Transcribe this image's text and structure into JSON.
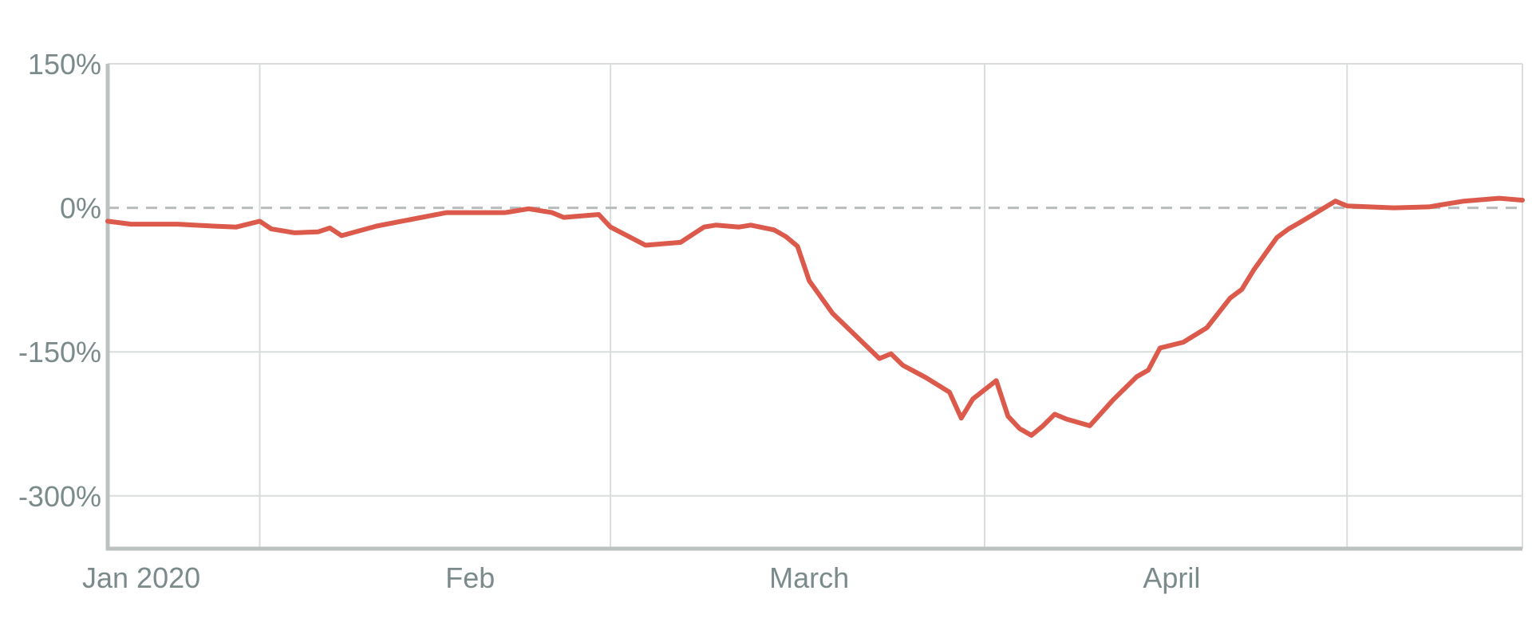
{
  "chart_data": {
    "type": "line",
    "title": "",
    "xlabel": "",
    "ylabel": "",
    "x_tick_labels": [
      "Jan 2020",
      "Feb",
      "March",
      "April"
    ],
    "y_tick_labels": [
      "150%",
      "0%",
      "-150%",
      "-300%"
    ],
    "y_ticks": [
      150,
      0,
      -150,
      -300
    ],
    "ylim": [
      -355,
      150
    ],
    "x_unit": "day",
    "x_range": [
      0,
      121
    ],
    "month_starts": [
      0,
      31,
      60,
      91
    ],
    "gridlines_x": [
      13,
      43,
      75,
      106
    ],
    "grid": true,
    "reference_line": {
      "y": 0,
      "style": "dashed"
    },
    "colors": {
      "series": "#dc5a4c",
      "grid": "#d9dddd",
      "axis": "#bcc2c2",
      "text": "#7b8a8b",
      "reference": "#b8bcbc"
    },
    "series": [
      {
        "name": "",
        "x": [
          0,
          2,
          6,
          9,
          11,
          13,
          14,
          16,
          18,
          19,
          20,
          23,
          26,
          29,
          31,
          34,
          36,
          38,
          39,
          40,
          42,
          43,
          46,
          49,
          50,
          51,
          52,
          54,
          55,
          57,
          58,
          59,
          60,
          62,
          66,
          67,
          68,
          70,
          72,
          73,
          74,
          76,
          77,
          78,
          79,
          80,
          81,
          82,
          84,
          86,
          88,
          89,
          90,
          92,
          94,
          96,
          97,
          98,
          100,
          101,
          102,
          105,
          106,
          110,
          113,
          114,
          116,
          119,
          121
        ],
        "y": [
          -14,
          -17,
          -17,
          -19,
          -20,
          -14,
          -22,
          -26,
          -25,
          -21,
          -29,
          -19,
          -12,
          -5,
          -5,
          -5,
          -1,
          -5,
          -10,
          -9,
          -7,
          -20,
          -39,
          -36,
          -28,
          -20,
          -18,
          -20,
          -18,
          -23,
          -30,
          -40,
          -76,
          -110,
          -157,
          -152,
          -164,
          -177,
          -192,
          -219,
          -199,
          -180,
          -217,
          -230,
          -237,
          -227,
          -215,
          -220,
          -227,
          -200,
          -176,
          -169,
          -146,
          -140,
          -125,
          -94,
          -85,
          -65,
          -31,
          -22,
          -15,
          7,
          2,
          0,
          1,
          3,
          7,
          10,
          8
        ]
      }
    ]
  }
}
